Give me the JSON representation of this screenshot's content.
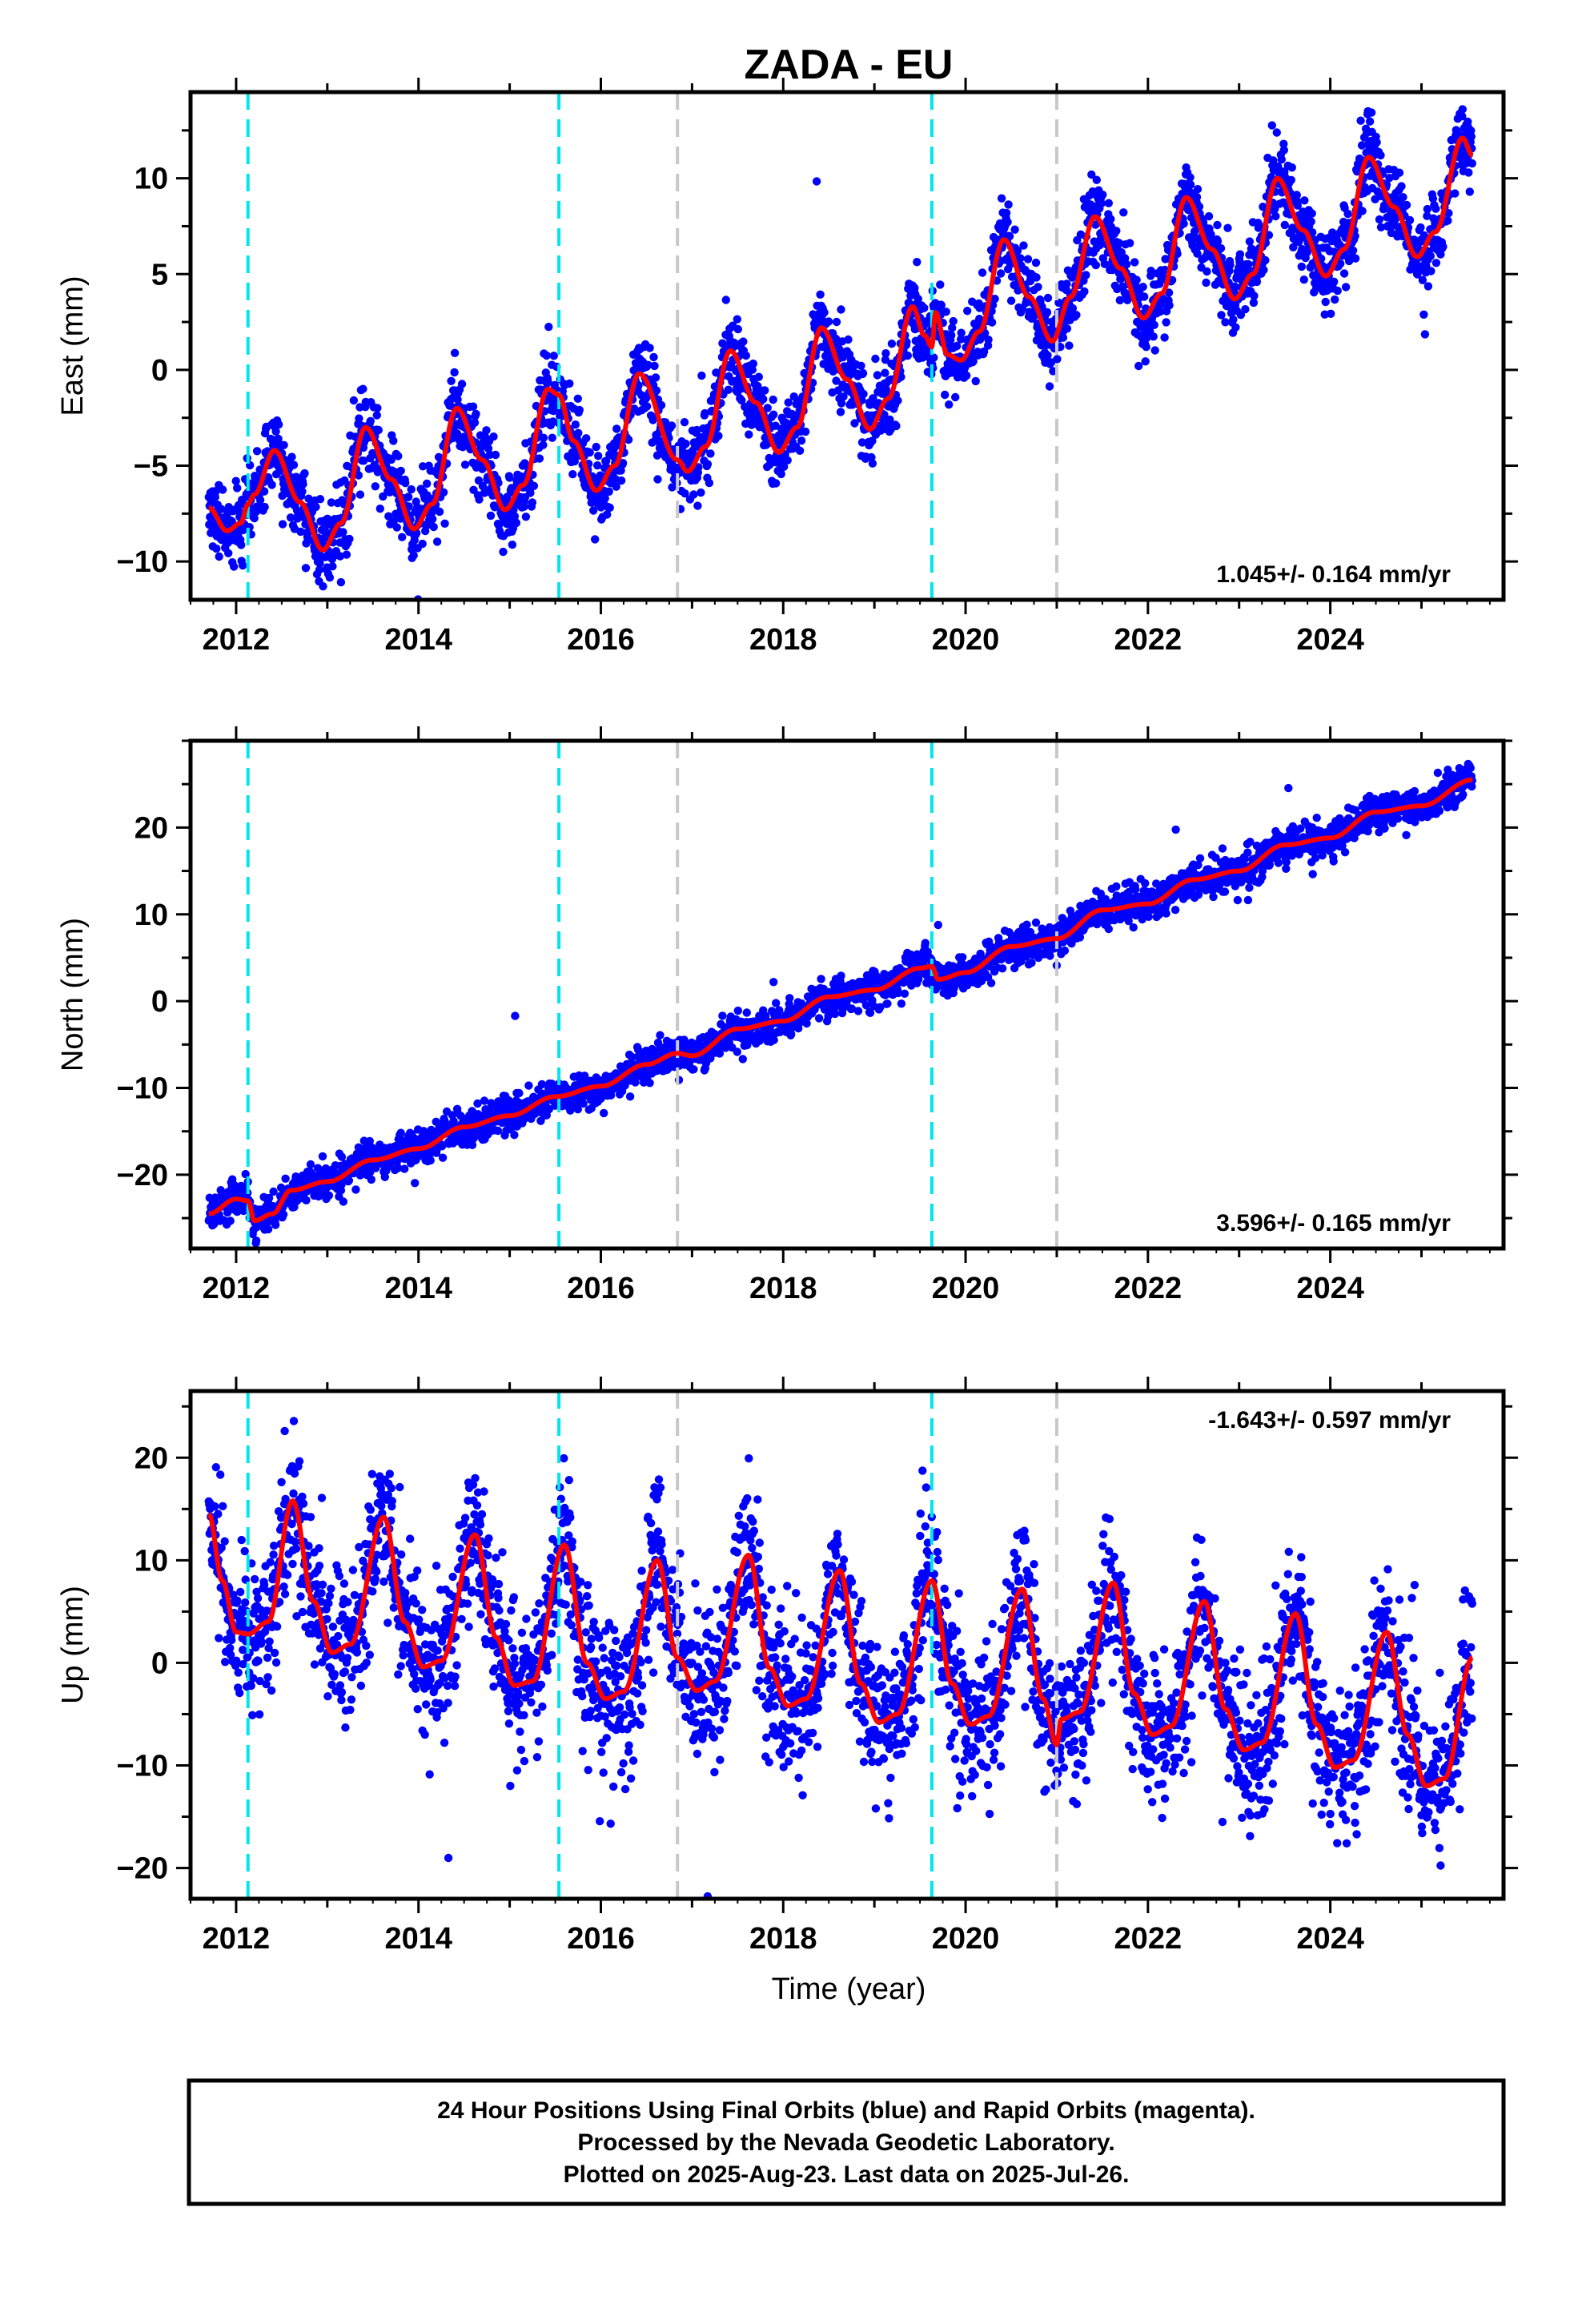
{
  "title": "ZADA - EU",
  "xlabel": "Time (year)",
  "footer": {
    "line1": "24 Hour Positions Using Final Orbits (blue) and Rapid Orbits (magenta).",
    "line2": "Processed by the Nevada Geodetic Laboratory.",
    "line3": "Plotted on 2025-Aug-23. Last data on 2025-Jul-26."
  },
  "colors": {
    "points": "#0000ff",
    "fit": "#ff0000",
    "equipment_change": "#00e5ee",
    "other_event": "#c8c8c8",
    "frame": "#000000"
  },
  "chart_data": [
    {
      "type": "scatter",
      "ylabel": "East (mm)",
      "rate_label": "1.045+/- 0.164 mm/yr",
      "rate_position": "bottom-right",
      "xlim": [
        2011.5,
        2025.9
      ],
      "ylim": [
        -12.0,
        14.5
      ],
      "x_ticks": [
        2012,
        2014,
        2016,
        2018,
        2020,
        2022,
        2024
      ],
      "y_ticks": [
        -10,
        -5,
        0,
        5,
        10
      ],
      "vlines_cyan": [
        2012.13,
        2015.54,
        2019.63
      ],
      "vlines_gray": [
        2016.84,
        2021.0
      ],
      "data_start": 2011.7,
      "data_end": 2025.56,
      "fit_knots": [
        [
          2011.7,
          -7.2
        ],
        [
          2011.9,
          -8.4
        ],
        [
          2012.05,
          -8.0
        ],
        [
          2012.13,
          -7.0
        ],
        [
          2012.2,
          -6.5
        ],
        [
          2012.42,
          -4.2
        ],
        [
          2012.7,
          -6.9
        ],
        [
          2012.95,
          -9.4
        ],
        [
          2013.15,
          -8.0
        ],
        [
          2013.42,
          -3.0
        ],
        [
          2013.7,
          -5.7
        ],
        [
          2013.95,
          -8.3
        ],
        [
          2014.15,
          -7.0
        ],
        [
          2014.42,
          -2.0
        ],
        [
          2014.7,
          -4.7
        ],
        [
          2014.95,
          -7.3
        ],
        [
          2015.15,
          -6.0
        ],
        [
          2015.42,
          -1.0
        ],
        [
          2015.54,
          -1.3
        ],
        [
          2015.7,
          -3.7
        ],
        [
          2015.95,
          -6.3
        ],
        [
          2016.15,
          -5.0
        ],
        [
          2016.42,
          -0.2
        ],
        [
          2016.84,
          -4.7
        ],
        [
          2016.95,
          -5.3
        ],
        [
          2017.15,
          -4.0
        ],
        [
          2017.42,
          1.0
        ],
        [
          2017.7,
          -1.7
        ],
        [
          2017.95,
          -4.3
        ],
        [
          2018.15,
          -3.0
        ],
        [
          2018.42,
          2.2
        ],
        [
          2018.7,
          -0.5
        ],
        [
          2018.95,
          -3.1
        ],
        [
          2019.15,
          -1.5
        ],
        [
          2019.42,
          3.3
        ],
        [
          2019.55,
          1.8
        ],
        [
          2019.63,
          1.2
        ],
        [
          2019.67,
          3.0
        ],
        [
          2019.8,
          0.8
        ],
        [
          2019.95,
          0.5
        ],
        [
          2020.15,
          2.0
        ],
        [
          2020.42,
          6.8
        ],
        [
          2020.7,
          3.8
        ],
        [
          2020.95,
          1.5
        ],
        [
          2021.15,
          3.8
        ],
        [
          2021.42,
          8.0
        ],
        [
          2021.7,
          5.3
        ],
        [
          2021.95,
          2.7
        ],
        [
          2022.15,
          4.0
        ],
        [
          2022.42,
          9.0
        ],
        [
          2022.7,
          6.3
        ],
        [
          2022.95,
          3.7
        ],
        [
          2023.15,
          5.0
        ],
        [
          2023.42,
          10.0
        ],
        [
          2023.7,
          7.3
        ],
        [
          2023.95,
          4.9
        ],
        [
          2024.15,
          6.3
        ],
        [
          2024.42,
          11.1
        ],
        [
          2024.7,
          8.5
        ],
        [
          2024.95,
          5.9
        ],
        [
          2025.15,
          7.2
        ],
        [
          2025.45,
          12.1
        ],
        [
          2025.56,
          11.2
        ]
      ],
      "scatter_noise_sd": 1.0
    },
    {
      "type": "scatter",
      "ylabel": "North (mm)",
      "rate_label": "3.596+/- 0.165 mm/yr",
      "rate_position": "bottom-right",
      "xlim": [
        2011.5,
        2025.9
      ],
      "ylim": [
        -28.5,
        30.0
      ],
      "x_ticks": [
        2012,
        2014,
        2016,
        2018,
        2020,
        2022,
        2024
      ],
      "y_ticks": [
        -20,
        -10,
        0,
        10,
        20
      ],
      "vlines_cyan": [
        2012.13,
        2015.54,
        2019.63
      ],
      "vlines_gray": [
        2016.84,
        2021.0
      ],
      "data_start": 2011.7,
      "data_end": 2025.56,
      "fit_knots": [
        [
          2011.7,
          -24.5
        ],
        [
          2012.0,
          -22.8
        ],
        [
          2012.13,
          -23.0
        ],
        [
          2012.2,
          -25.3
        ],
        [
          2012.4,
          -24.5
        ],
        [
          2012.6,
          -21.8
        ],
        [
          2013.0,
          -20.8
        ],
        [
          2013.5,
          -18.3
        ],
        [
          2014.0,
          -17.0
        ],
        [
          2014.5,
          -14.5
        ],
        [
          2015.0,
          -13.2
        ],
        [
          2015.5,
          -11.0
        ],
        [
          2016.0,
          -9.8
        ],
        [
          2016.5,
          -7.3
        ],
        [
          2016.84,
          -6.0
        ],
        [
          2017.0,
          -6.3
        ],
        [
          2017.5,
          -3.2
        ],
        [
          2018.0,
          -2.3
        ],
        [
          2018.5,
          0.5
        ],
        [
          2019.0,
          1.3
        ],
        [
          2019.5,
          3.8
        ],
        [
          2019.63,
          4.0
        ],
        [
          2019.7,
          2.5
        ],
        [
          2020.0,
          3.3
        ],
        [
          2020.5,
          6.3
        ],
        [
          2021.0,
          7.2
        ],
        [
          2021.5,
          10.5
        ],
        [
          2022.0,
          11.2
        ],
        [
          2022.5,
          14.0
        ],
        [
          2023.0,
          15.0
        ],
        [
          2023.5,
          18.0
        ],
        [
          2024.0,
          18.8
        ],
        [
          2024.5,
          21.8
        ],
        [
          2025.0,
          22.5
        ],
        [
          2025.56,
          25.5
        ]
      ],
      "scatter_noise_sd": 1.0,
      "outliers": [
        [
          2015.06,
          -1.7
        ]
      ]
    },
    {
      "type": "scatter",
      "ylabel": "Up (mm)",
      "rate_label": "-1.643+/- 0.597 mm/yr",
      "rate_position": "top-right",
      "xlim": [
        2011.5,
        2025.9
      ],
      "ylim": [
        -23.0,
        26.5
      ],
      "x_ticks": [
        2012,
        2014,
        2016,
        2018,
        2020,
        2022,
        2024
      ],
      "y_ticks": [
        -20,
        -10,
        0,
        10,
        20
      ],
      "vlines_cyan": [
        2012.13,
        2015.54,
        2019.63
      ],
      "vlines_gray": [
        2016.84,
        2021.0
      ],
      "data_start": 2011.7,
      "data_end": 2025.56,
      "fit_knots": [
        [
          2011.7,
          14.5
        ],
        [
          2011.85,
          8.0
        ],
        [
          2012.0,
          3.0
        ],
        [
          2012.13,
          2.8
        ],
        [
          2012.35,
          4.0
        ],
        [
          2012.62,
          15.8
        ],
        [
          2012.85,
          6.0
        ],
        [
          2013.05,
          1.0
        ],
        [
          2013.25,
          1.8
        ],
        [
          2013.62,
          14.2
        ],
        [
          2013.85,
          4.0
        ],
        [
          2014.05,
          -0.4
        ],
        [
          2014.25,
          0.2
        ],
        [
          2014.62,
          12.5
        ],
        [
          2014.85,
          2.5
        ],
        [
          2015.05,
          -2.2
        ],
        [
          2015.25,
          -1.8
        ],
        [
          2015.6,
          11.5
        ],
        [
          2015.85,
          0.0
        ],
        [
          2016.05,
          -3.5
        ],
        [
          2016.25,
          -2.8
        ],
        [
          2016.62,
          10.0
        ],
        [
          2016.84,
          0.5
        ],
        [
          2017.05,
          -2.7
        ],
        [
          2017.25,
          -1.8
        ],
        [
          2017.62,
          10.5
        ],
        [
          2017.85,
          -0.5
        ],
        [
          2018.05,
          -4.2
        ],
        [
          2018.25,
          -3.5
        ],
        [
          2018.62,
          9.0
        ],
        [
          2018.85,
          -2.0
        ],
        [
          2019.05,
          -5.8
        ],
        [
          2019.25,
          -5.0
        ],
        [
          2019.63,
          8.0
        ],
        [
          2019.85,
          -2.0
        ],
        [
          2020.05,
          -6.0
        ],
        [
          2020.25,
          -5.2
        ],
        [
          2020.62,
          7.2
        ],
        [
          2020.85,
          -3.5
        ],
        [
          2021.0,
          -8.0
        ],
        [
          2021.05,
          -5.5
        ],
        [
          2021.25,
          -4.8
        ],
        [
          2021.62,
          7.8
        ],
        [
          2021.85,
          -3.0
        ],
        [
          2022.05,
          -7.0
        ],
        [
          2022.25,
          -6.2
        ],
        [
          2022.62,
          6.0
        ],
        [
          2022.85,
          -4.5
        ],
        [
          2023.05,
          -8.5
        ],
        [
          2023.25,
          -7.8
        ],
        [
          2023.62,
          4.8
        ],
        [
          2023.85,
          -6.0
        ],
        [
          2024.05,
          -10.2
        ],
        [
          2024.25,
          -9.5
        ],
        [
          2024.62,
          3.0
        ],
        [
          2024.85,
          -7.0
        ],
        [
          2025.05,
          -12.0
        ],
        [
          2025.25,
          -11.3
        ],
        [
          2025.56,
          0.5
        ]
      ],
      "scatter_noise_sd": 3.6
    }
  ]
}
